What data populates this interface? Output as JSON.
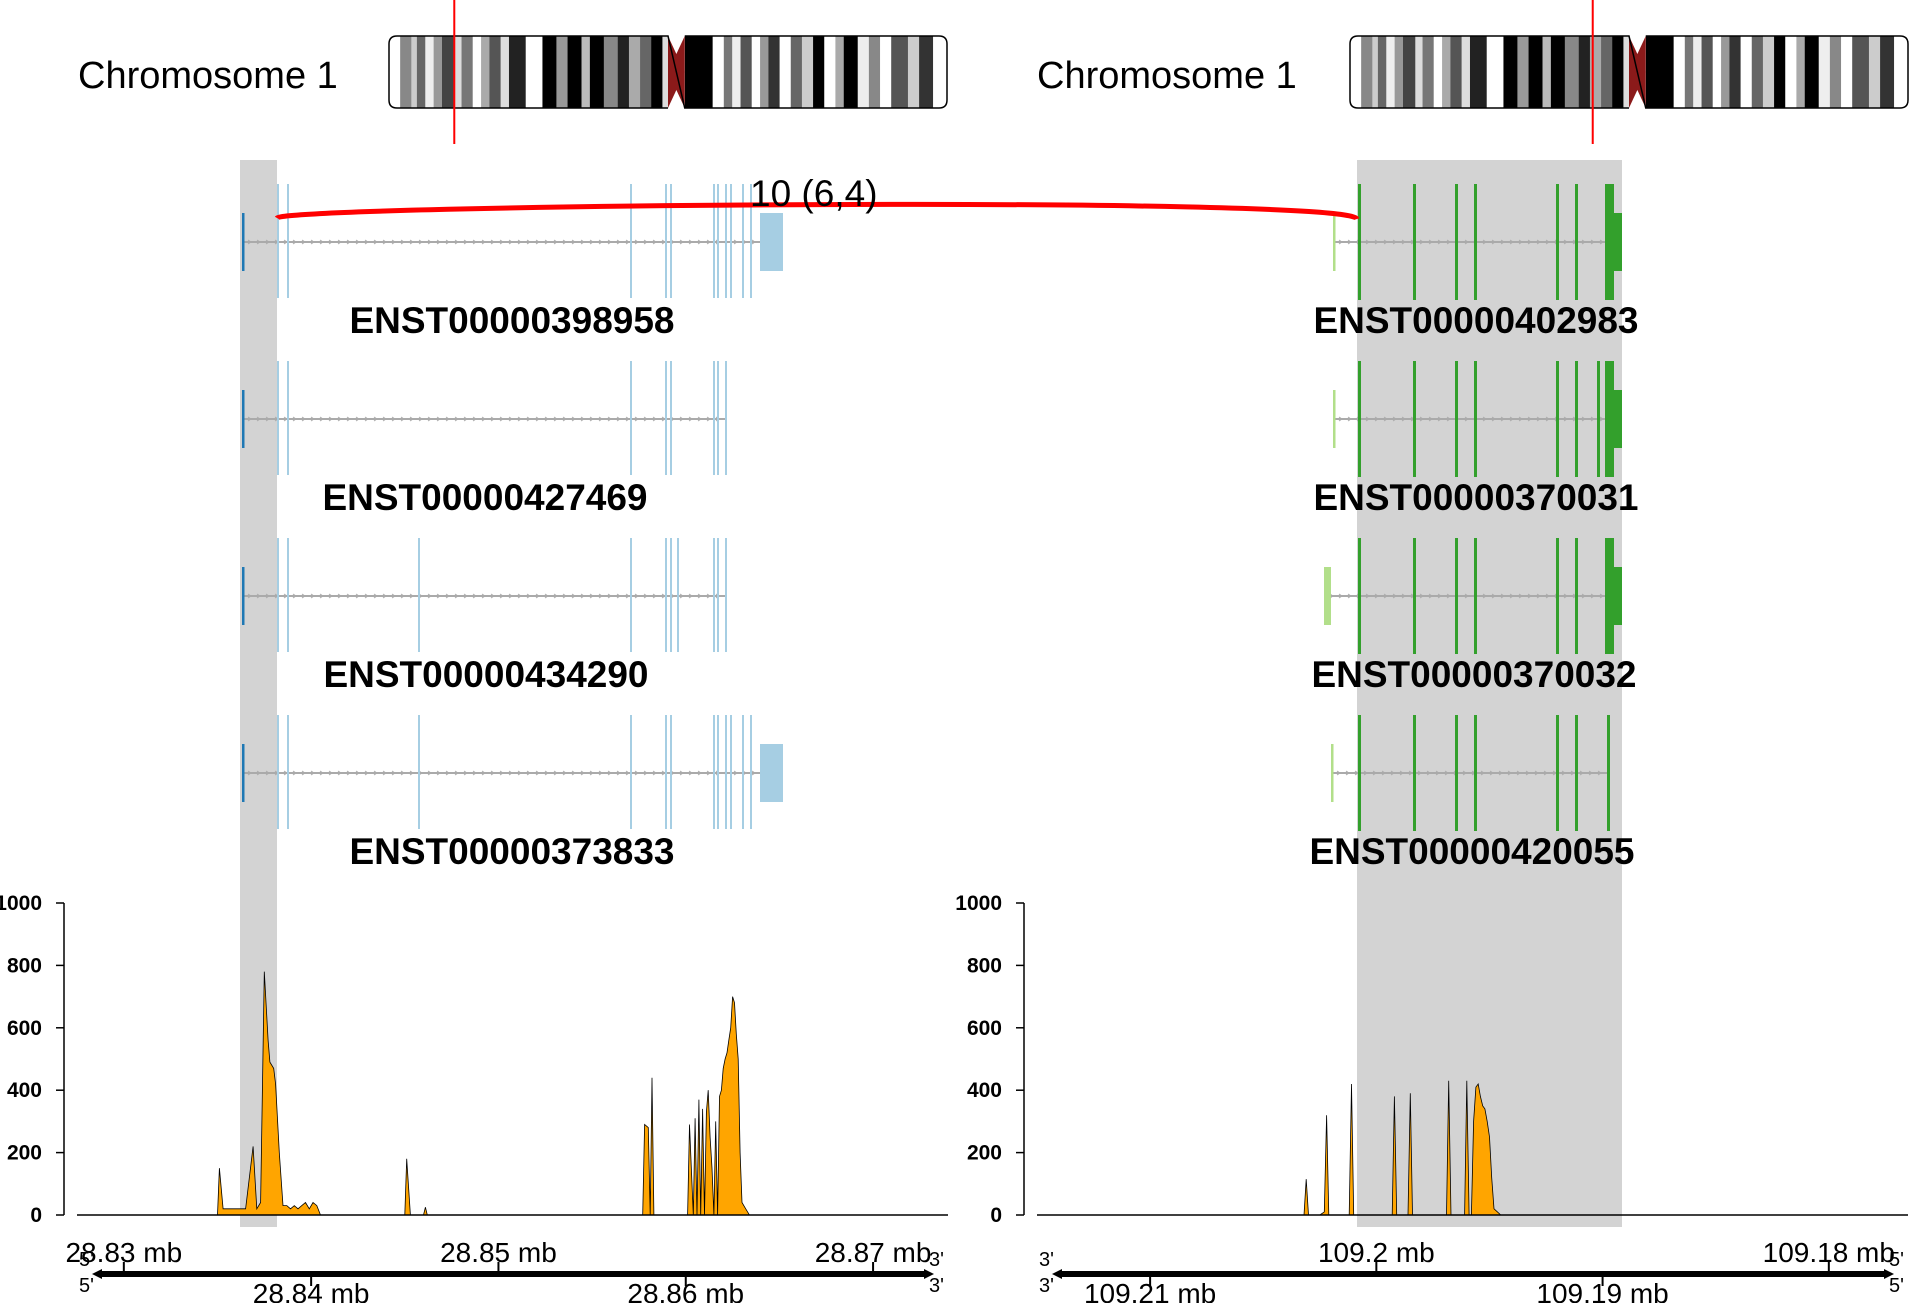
{
  "colors": {
    "highlight": "#d3d3d3",
    "fusion_arc": "#ff0000",
    "gene_a_exon": "#a6cee3",
    "gene_a_first_exon": "#1f78b4",
    "gene_b_exon": "#33a02c",
    "gene_b_first_exon": "#b2df8a",
    "intron": "#aaaaaa",
    "coverage_fill": "#ffa500",
    "chromosome_marker": "#ff0000",
    "centromere": "#8b1a1a"
  },
  "chromosomes": [
    {
      "label": "Chromosome 1",
      "marker_fraction": 0.117
    },
    {
      "label": "Chromosome 1",
      "marker_fraction": 0.435
    }
  ],
  "fusion": {
    "label": "10 (6,4)"
  },
  "gene_a": {
    "transcripts": [
      {
        "name": "ENST00000398958"
      },
      {
        "name": "ENST00000427469"
      },
      {
        "name": "ENST00000434290"
      },
      {
        "name": "ENST00000373833"
      }
    ]
  },
  "gene_b": {
    "transcripts": [
      {
        "name": "ENST00000402983"
      },
      {
        "name": "ENST00000370031"
      },
      {
        "name": "ENST00000370032"
      },
      {
        "name": "ENST00000420055"
      }
    ]
  },
  "axis_a": {
    "top_ticks": [
      {
        "value": 28.83,
        "label": "28.83 mb"
      },
      {
        "value": 28.85,
        "label": "28.85 mb"
      },
      {
        "value": 28.87,
        "label": "28.87 mb"
      }
    ],
    "bottom_ticks": [
      {
        "value": 28.84,
        "label": "28.84 mb"
      },
      {
        "value": 28.86,
        "label": "28.86 mb"
      }
    ],
    "top_left_end": "5'",
    "top_right_end": "3'",
    "bottom_left_end": "5'",
    "bottom_right_end": "3'"
  },
  "axis_b": {
    "top_ticks": [
      {
        "value": 109.2,
        "label": "109.2 mb"
      },
      {
        "value": 109.18,
        "label": "109.18 mb"
      }
    ],
    "bottom_ticks": [
      {
        "value": 109.21,
        "label": "109.21 mb"
      },
      {
        "value": 109.19,
        "label": "109.19 mb"
      }
    ],
    "top_left_end": "3'",
    "top_right_end": "5'",
    "bottom_left_end": "3'",
    "bottom_right_end": "5'"
  },
  "chart_data": [
    {
      "type": "area",
      "title": "",
      "xlabel": "",
      "ylabel": "",
      "x_unit": "mb",
      "xlim": [
        28.8275,
        28.874
      ],
      "ylim": [
        0,
        1000
      ],
      "yticks": [
        0,
        200,
        400,
        600,
        800,
        1000
      ],
      "ytick_labels": [
        "0",
        "200",
        "400",
        "600",
        "800",
        "1000"
      ],
      "series": [
        {
          "x": [
            28.8275,
            28.835,
            28.8351,
            28.8353,
            28.8355,
            28.8365,
            28.8369,
            28.8371,
            28.8373,
            28.8375,
            28.8377,
            28.8378,
            28.838,
            28.8381,
            28.8383,
            28.8385,
            28.8387,
            28.8389,
            28.8391,
            28.8393,
            28.8395,
            28.8397,
            28.8399,
            28.8401,
            28.8403,
            28.8405,
            28.845,
            28.8451,
            28.8453,
            28.846,
            28.8461,
            28.8462,
            28.8556,
            28.8557,
            28.8558,
            28.8577,
            28.8578,
            28.858,
            28.8581,
            28.8582,
            28.8583,
            28.8584,
            28.8585,
            28.8586,
            28.8587,
            28.8601,
            28.8602,
            28.8604,
            28.8605,
            28.8606,
            28.8607,
            28.8608,
            28.8609,
            28.861,
            28.8611,
            28.8612,
            28.8613,
            28.8614,
            28.8615,
            28.8616,
            28.8617,
            28.8618,
            28.8619,
            28.862,
            28.8621,
            28.8622,
            28.8623,
            28.8624,
            28.8625,
            28.8626,
            28.8627,
            28.8628,
            28.8629,
            28.863,
            28.8631,
            28.8632,
            28.8633,
            28.8634,
            28.8635,
            28.8636,
            28.8637,
            28.8638,
            28.8639,
            28.864,
            28.8641,
            28.8643,
            28.874
          ],
          "y": [
            0,
            0,
            150,
            20,
            20,
            20,
            220,
            20,
            40,
            780,
            560,
            490,
            470,
            420,
            200,
            30,
            30,
            20,
            30,
            20,
            30,
            40,
            20,
            40,
            30,
            0,
            0,
            180,
            0,
            0,
            25,
            0,
            0,
            0,
            0,
            0,
            290,
            280,
            0,
            440,
            0,
            0,
            0,
            0,
            0,
            0,
            290,
            0,
            310,
            0,
            370,
            0,
            340,
            0,
            330,
            400,
            250,
            150,
            0,
            300,
            0,
            380,
            400,
            470,
            500,
            520,
            560,
            600,
            700,
            680,
            580,
            500,
            200,
            40,
            30,
            20,
            10,
            0,
            0,
            0,
            0,
            0,
            0,
            0,
            0,
            0,
            0
          ]
        }
      ]
    },
    {
      "type": "area",
      "title": "",
      "xlabel": "",
      "ylabel": "",
      "x_unit": "mb",
      "xlim": [
        109.215,
        109.1765
      ],
      "ylim": [
        0,
        1000
      ],
      "yticks": [
        0,
        200,
        400,
        600,
        800,
        1000
      ],
      "ytick_labels": [
        "0",
        "200",
        "400",
        "600",
        "800",
        "1000"
      ],
      "series": [
        {
          "x": [
            109.215,
            109.2032,
            109.2031,
            109.203,
            109.2029,
            109.2025,
            109.2023,
            109.2022,
            109.2021,
            109.202,
            109.2019,
            109.2012,
            109.2011,
            109.201,
            109.2009,
            109.1993,
            109.1992,
            109.1991,
            109.199,
            109.1989,
            109.1986,
            109.1985,
            109.1984,
            109.1983,
            109.1982,
            109.1969,
            109.1968,
            109.1967,
            109.1966,
            109.1965,
            109.1961,
            109.196,
            109.1959,
            109.1958,
            109.1957,
            109.1958,
            109.1957,
            109.1956,
            109.1955,
            109.1954,
            109.1953,
            109.1952,
            109.1951,
            109.195,
            109.1949,
            109.1948,
            109.1945,
            109.1765
          ],
          "y": [
            0,
            0,
            115,
            0,
            0,
            0,
            10,
            320,
            0,
            0,
            0,
            0,
            420,
            0,
            0,
            0,
            380,
            0,
            0,
            0,
            0,
            390,
            0,
            0,
            0,
            0,
            430,
            0,
            0,
            0,
            0,
            430,
            0,
            0,
            0,
            0,
            300,
            410,
            420,
            380,
            350,
            340,
            300,
            250,
            120,
            20,
            0,
            0
          ]
        }
      ]
    }
  ]
}
